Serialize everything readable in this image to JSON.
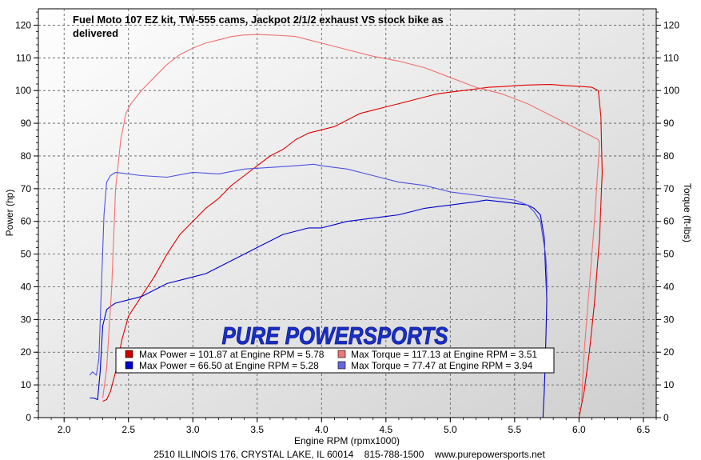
{
  "chart_data": {
    "type": "line",
    "title": "Fuel Moto 107 EZ kit, TW-555 cams, Jackpot 2/1/2 exhaust VS stock bike as delivered",
    "title_lines": [
      "Fuel Moto 107 EZ kit, TW-555 cams, Jackpot 2/1/2 exhaust VS stock bike as",
      "delivered"
    ],
    "xlabel": "Engine RPM (rpmx1000)",
    "ylabel": "Power (hp)",
    "y2label": "Torque (ft-lbs)",
    "xlim": [
      1.8,
      6.6
    ],
    "ylim": [
      0,
      125
    ],
    "x_ticks": [
      2.0,
      2.5,
      3.0,
      3.5,
      4.0,
      4.5,
      5.0,
      5.5,
      6.0,
      6.5
    ],
    "x_tick_labels": [
      "2.0",
      "2.5",
      "3.0",
      "3.5",
      "4.0",
      "4.5",
      "5.0",
      "5.5",
      "6.0",
      "6.5"
    ],
    "y_ticks": [
      0,
      10,
      20,
      30,
      40,
      50,
      60,
      70,
      80,
      90,
      100,
      110,
      120
    ],
    "y_tick_labels": [
      "0",
      "10",
      "20",
      "30",
      "40",
      "50",
      "60",
      "70",
      "80",
      "90",
      "100",
      "110",
      "120"
    ],
    "grid": true,
    "background_gradient": [
      "#ffffff",
      "#cfcfcf"
    ],
    "watermark": "PURE POWERSPORTS",
    "footer": "2510 ILLINOIS 176, CRYSTAL LAKE, IL 60014    815-788-1500    www.purepowersports.net",
    "legend_position": "bottom-center",
    "series": [
      {
        "name": "Max Power = 101.87 at Engine RPM = 5.78",
        "axis": "left",
        "color": "#e00000",
        "swatch": "#cc0000",
        "x": [
          2.3,
          2.33,
          2.36,
          2.4,
          2.45,
          2.5,
          2.6,
          2.7,
          2.8,
          2.9,
          3.0,
          3.1,
          3.2,
          3.3,
          3.4,
          3.5,
          3.6,
          3.7,
          3.8,
          3.9,
          4.0,
          4.1,
          4.2,
          4.3,
          4.4,
          4.5,
          4.6,
          4.7,
          4.8,
          4.9,
          5.0,
          5.1,
          5.2,
          5.3,
          5.4,
          5.5,
          5.6,
          5.7,
          5.78,
          5.9,
          6.0,
          6.1,
          6.15,
          6.17,
          6.18,
          6.16,
          6.12,
          6.08,
          6.04,
          6.0
        ],
        "y": [
          5,
          5.5,
          8,
          14,
          24,
          31,
          37,
          43,
          50,
          56,
          60,
          64,
          67,
          71,
          74,
          77,
          80,
          82,
          85,
          87,
          88,
          89,
          91,
          93,
          94,
          95,
          96,
          97,
          98,
          99,
          99.5,
          100,
          100.5,
          101,
          101.2,
          101.5,
          101.7,
          101.8,
          101.87,
          101.5,
          101.3,
          101,
          100,
          92,
          75,
          55,
          35,
          20,
          8,
          0
        ]
      },
      {
        "name": "Max Power = 66.50 at Engine RPM = 5.28",
        "axis": "left",
        "color": "#0000cc",
        "swatch": "#0000cc",
        "x": [
          2.2,
          2.23,
          2.26,
          2.28,
          2.3,
          2.33,
          2.36,
          2.4,
          2.5,
          2.6,
          2.7,
          2.8,
          2.9,
          3.0,
          3.1,
          3.2,
          3.3,
          3.4,
          3.5,
          3.6,
          3.7,
          3.8,
          3.9,
          4.0,
          4.1,
          4.2,
          4.3,
          4.4,
          4.5,
          4.6,
          4.7,
          4.8,
          4.9,
          5.0,
          5.1,
          5.2,
          5.28,
          5.4,
          5.5,
          5.6,
          5.65,
          5.7,
          5.73,
          5.74,
          5.75,
          5.74,
          5.73,
          5.72
        ],
        "y": [
          6,
          6,
          5.5,
          14,
          28,
          33,
          34,
          35,
          36,
          37,
          39,
          41,
          42,
          43,
          44,
          46,
          48,
          50,
          52,
          54,
          56,
          57,
          58,
          58,
          59,
          60,
          60.5,
          61,
          61.5,
          62,
          63,
          64,
          64.5,
          65,
          65.5,
          66,
          66.5,
          66,
          65.5,
          65,
          64,
          62,
          55,
          45,
          36,
          20,
          8,
          0
        ]
      },
      {
        "name": "Max Torque = 117.13 at Engine RPM = 3.51",
        "axis": "right",
        "color": "#f07070",
        "swatch": "#ee7777",
        "x": [
          2.3,
          2.33,
          2.37,
          2.4,
          2.44,
          2.48,
          2.52,
          2.56,
          2.6,
          2.7,
          2.8,
          2.9,
          3.0,
          3.1,
          3.2,
          3.3,
          3.4,
          3.51,
          3.6,
          3.7,
          3.8,
          3.9,
          4.0,
          4.2,
          4.4,
          4.6,
          4.8,
          5.0,
          5.2,
          5.4,
          5.6,
          5.8,
          5.9,
          6.0,
          6.1,
          6.15,
          6.16,
          6.12,
          6.08,
          6.04,
          6.02
        ],
        "y": [
          6,
          15,
          40,
          70,
          85,
          93,
          96,
          98,
          100,
          104,
          108,
          111,
          113,
          114.5,
          115.5,
          116.5,
          117,
          117.13,
          117,
          116.8,
          116.5,
          115.5,
          114.5,
          112.5,
          110.5,
          109,
          107,
          104,
          101,
          99,
          96,
          92,
          90,
          88,
          86,
          85,
          84,
          60,
          40,
          20,
          5
        ]
      },
      {
        "name": "Max Torque = 77.47 at Engine RPM = 3.94",
        "axis": "right",
        "color": "#5050e0",
        "swatch": "#6666dd",
        "x": [
          2.2,
          2.22,
          2.25,
          2.27,
          2.29,
          2.31,
          2.33,
          2.36,
          2.4,
          2.5,
          2.6,
          2.8,
          3.0,
          3.2,
          3.4,
          3.6,
          3.8,
          3.94,
          4.0,
          4.2,
          4.4,
          4.6,
          4.8,
          5.0,
          5.2,
          5.4,
          5.5,
          5.6,
          5.65,
          5.7,
          5.72,
          5.74,
          5.75,
          5.75
        ],
        "y": [
          13,
          14,
          13,
          18,
          40,
          62,
          72,
          74,
          75,
          74.5,
          74,
          73.5,
          75,
          74.5,
          76,
          76.5,
          77,
          77.47,
          77,
          76,
          74,
          72,
          71,
          69,
          68,
          67,
          66.5,
          65,
          63,
          60,
          55,
          50,
          44,
          38
        ]
      }
    ]
  }
}
